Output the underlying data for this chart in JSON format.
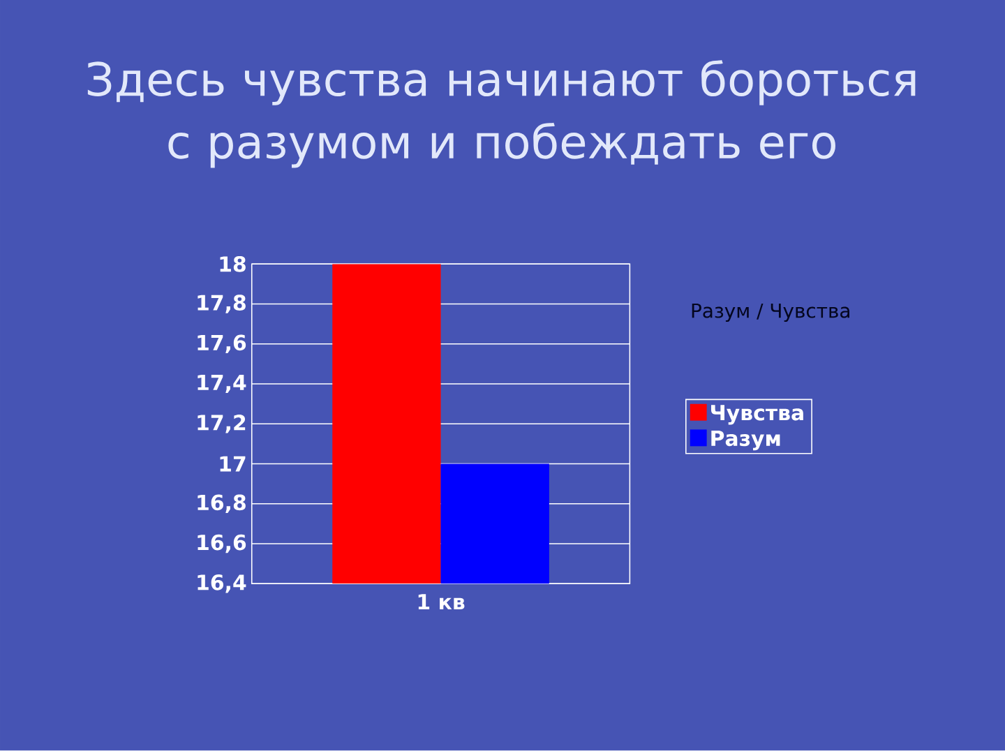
{
  "chart_data": {
    "type": "bar",
    "title": "Здесь чувства начинают бороться с разумом и побеждать его",
    "categories": [
      "1 кв"
    ],
    "series": [
      {
        "name": "Чувства",
        "color": "#ff0000",
        "values": [
          18
        ]
      },
      {
        "name": "Разум",
        "color": "#0000ff",
        "values": [
          17
        ]
      }
    ],
    "ylim": [
      16.4,
      18
    ],
    "yticks": [
      {
        "value": 16.4,
        "label": "16,4"
      },
      {
        "value": 16.6,
        "label": "16,6"
      },
      {
        "value": 16.8,
        "label": "16,8"
      },
      17,
      {
        "value": 17.2,
        "label": "17,2"
      },
      {
        "value": 17.4,
        "label": "17,4"
      },
      {
        "value": 17.6,
        "label": "17,6"
      },
      {
        "value": 17.8,
        "label": "17,8"
      },
      18
    ],
    "grid": "y",
    "legend": "right",
    "annotations": [
      "Разум / Чувства"
    ]
  }
}
